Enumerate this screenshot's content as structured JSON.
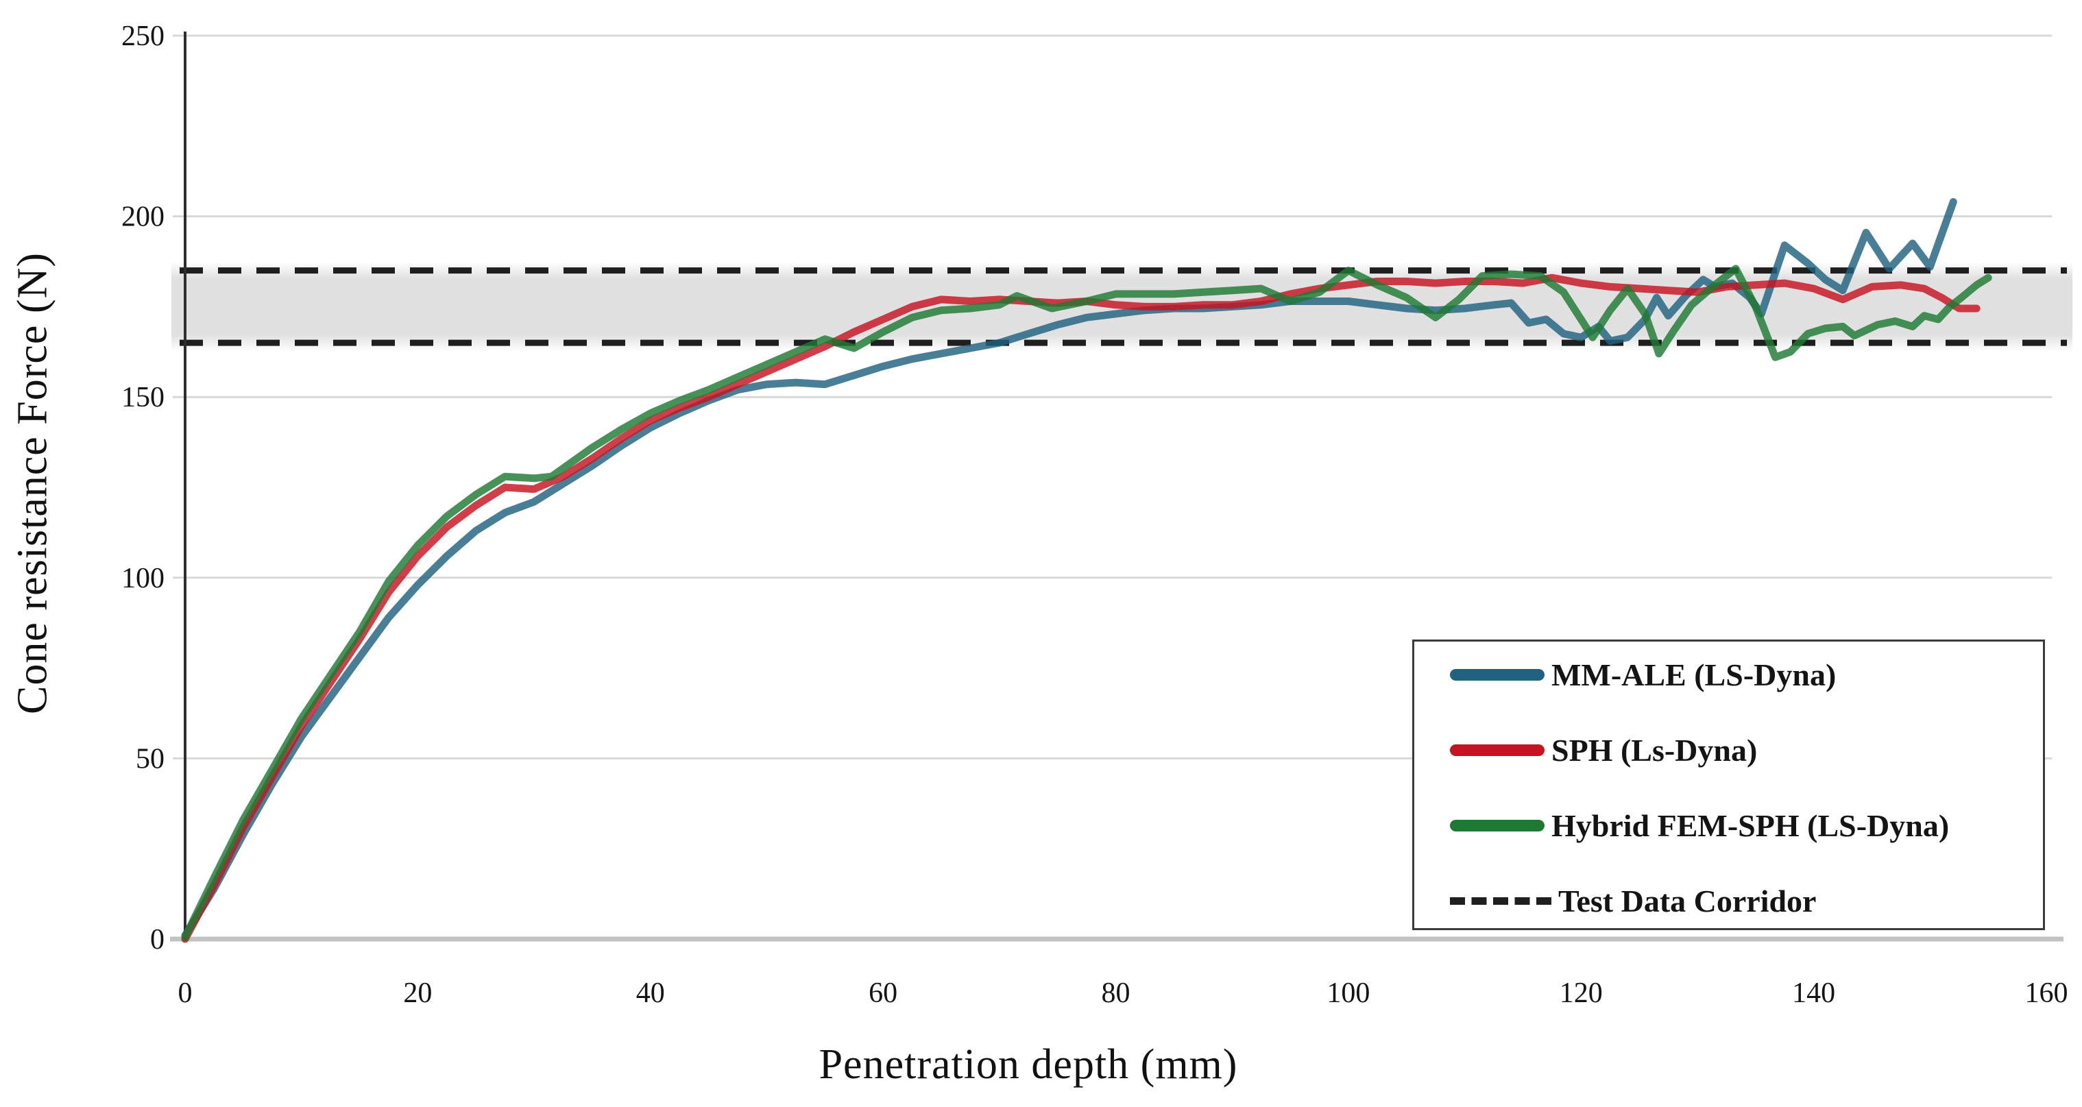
{
  "figure": {
    "type": "line-chart-figure",
    "background": "#ffffff"
  },
  "chart_data": {
    "type": "line",
    "title": "",
    "xlabel": "Penetration depth (mm)",
    "ylabel": "Cone resistance Force (N)",
    "x_axis": {
      "min": 0,
      "max": 160,
      "ticks": [
        0,
        20,
        40,
        60,
        80,
        100,
        120,
        140,
        160
      ]
    },
    "y_axis": {
      "min": 0,
      "max": 250,
      "ticks": [
        0,
        50,
        100,
        150,
        200,
        250
      ]
    },
    "grid": "horizontal-only",
    "corridor": {
      "label": "Test Data Corridor",
      "lower": 165,
      "upper": 185,
      "line_color": "#1f1f1f",
      "band_color": "#d9d9d9"
    },
    "legend_position": "inside-right-bottom",
    "series": [
      {
        "name": "MM-ALE (LS-Dyna)",
        "color": "#20627f",
        "points": [
          [
            0,
            1
          ],
          [
            2.5,
            14
          ],
          [
            5,
            29
          ],
          [
            7.5,
            43
          ],
          [
            10,
            56
          ],
          [
            12.5,
            67
          ],
          [
            15,
            78
          ],
          [
            17.5,
            89
          ],
          [
            20,
            98
          ],
          [
            22.5,
            106
          ],
          [
            25,
            113
          ],
          [
            27.5,
            118
          ],
          [
            30,
            121
          ],
          [
            32.5,
            126
          ],
          [
            35,
            131
          ],
          [
            37.5,
            136.5
          ],
          [
            40,
            141.5
          ],
          [
            42.5,
            145.5
          ],
          [
            45,
            149
          ],
          [
            47.5,
            152
          ],
          [
            50,
            153.5
          ],
          [
            52.5,
            154
          ],
          [
            55,
            153.5
          ],
          [
            57.5,
            156
          ],
          [
            60,
            158.5
          ],
          [
            62.5,
            160.5
          ],
          [
            65,
            162
          ],
          [
            67.5,
            163.5
          ],
          [
            70,
            165
          ],
          [
            72.5,
            167.5
          ],
          [
            75,
            170
          ],
          [
            77.5,
            172
          ],
          [
            80,
            173
          ],
          [
            82.5,
            174
          ],
          [
            85,
            174.5
          ],
          [
            87.5,
            174.5
          ],
          [
            90,
            175
          ],
          [
            92.5,
            175.5
          ],
          [
            95,
            176.5
          ],
          [
            97.5,
            176.5
          ],
          [
            100,
            176.5
          ],
          [
            102.5,
            175.5
          ],
          [
            105,
            174.5
          ],
          [
            107.5,
            174
          ],
          [
            110,
            174.5
          ],
          [
            112.5,
            175.5
          ],
          [
            114,
            176
          ],
          [
            115.5,
            170.5
          ],
          [
            117,
            171.5
          ],
          [
            118.5,
            167.5
          ],
          [
            120,
            166.5
          ],
          [
            121.5,
            169.5
          ],
          [
            122.5,
            165.5
          ],
          [
            124,
            166.5
          ],
          [
            125.5,
            171.5
          ],
          [
            126.5,
            177.5
          ],
          [
            127.5,
            172.5
          ],
          [
            129,
            178
          ],
          [
            130.5,
            182.5
          ],
          [
            131.5,
            180.5
          ],
          [
            133,
            181.5
          ],
          [
            134.5,
            177.5
          ],
          [
            135.5,
            173
          ],
          [
            137.5,
            192
          ],
          [
            139.5,
            187
          ],
          [
            141,
            182.5
          ],
          [
            142.5,
            179.5
          ],
          [
            144.5,
            195.5
          ],
          [
            146.5,
            185.5
          ],
          [
            148.5,
            192.5
          ],
          [
            150,
            186
          ],
          [
            152,
            204
          ]
        ]
      },
      {
        "name": "SPH (Ls-Dyna)",
        "color": "#c61322",
        "points": [
          [
            0,
            0
          ],
          [
            2.5,
            15
          ],
          [
            5,
            31
          ],
          [
            7.5,
            45
          ],
          [
            10,
            59
          ],
          [
            12.5,
            71
          ],
          [
            15,
            83
          ],
          [
            17.5,
            96
          ],
          [
            20,
            106
          ],
          [
            22.5,
            114
          ],
          [
            25,
            120
          ],
          [
            27.5,
            125
          ],
          [
            30,
            124.5
          ],
          [
            32.5,
            128
          ],
          [
            35,
            133
          ],
          [
            37.5,
            138.5
          ],
          [
            40,
            143.5
          ],
          [
            42.5,
            147
          ],
          [
            45,
            150
          ],
          [
            47.5,
            153.5
          ],
          [
            50,
            157
          ],
          [
            52.5,
            160.5
          ],
          [
            55,
            164
          ],
          [
            57.5,
            168
          ],
          [
            60,
            171.5
          ],
          [
            62.5,
            175
          ],
          [
            65,
            177
          ],
          [
            67.5,
            176.5
          ],
          [
            70,
            177
          ],
          [
            72.5,
            176.5
          ],
          [
            75,
            176
          ],
          [
            77.5,
            176.5
          ],
          [
            80,
            175.5
          ],
          [
            82.5,
            175
          ],
          [
            85,
            175
          ],
          [
            87.5,
            175.5
          ],
          [
            90,
            175.5
          ],
          [
            92.5,
            176.5
          ],
          [
            95,
            178.5
          ],
          [
            97.5,
            180
          ],
          [
            100,
            181
          ],
          [
            102.5,
            182
          ],
          [
            105,
            182
          ],
          [
            107.5,
            181.5
          ],
          [
            110,
            182
          ],
          [
            112.5,
            182
          ],
          [
            115,
            181.5
          ],
          [
            117.5,
            183
          ],
          [
            120,
            181.5
          ],
          [
            122.5,
            180.5
          ],
          [
            125,
            180
          ],
          [
            127.5,
            179.5
          ],
          [
            130,
            179
          ],
          [
            132.5,
            180.5
          ],
          [
            135,
            181
          ],
          [
            137.5,
            181.5
          ],
          [
            140,
            180
          ],
          [
            142.5,
            177
          ],
          [
            145,
            180.5
          ],
          [
            147.5,
            181
          ],
          [
            149.5,
            180
          ],
          [
            151,
            177.5
          ],
          [
            152.5,
            174.5
          ],
          [
            154,
            174.5
          ]
        ]
      },
      {
        "name": "Hybrid FEM-SPH (LS-Dyna)",
        "color": "#1e7a33",
        "points": [
          [
            0,
            0.5
          ],
          [
            2.5,
            17
          ],
          [
            5,
            33
          ],
          [
            7.5,
            47
          ],
          [
            10,
            61
          ],
          [
            12.5,
            73
          ],
          [
            15,
            85
          ],
          [
            17.5,
            99
          ],
          [
            20,
            109
          ],
          [
            22.5,
            117
          ],
          [
            25,
            123
          ],
          [
            27.5,
            128
          ],
          [
            30,
            127.5
          ],
          [
            31.5,
            128
          ],
          [
            35,
            136
          ],
          [
            37.5,
            141
          ],
          [
            40,
            145.5
          ],
          [
            42.5,
            149
          ],
          [
            45,
            152
          ],
          [
            47.5,
            155.5
          ],
          [
            50,
            159
          ],
          [
            52.5,
            162.5
          ],
          [
            55,
            166
          ],
          [
            57.5,
            163.5
          ],
          [
            60,
            168
          ],
          [
            62.5,
            172
          ],
          [
            65,
            174
          ],
          [
            67.5,
            174.5
          ],
          [
            70,
            175.5
          ],
          [
            71.5,
            178
          ],
          [
            74.5,
            174.5
          ],
          [
            77.5,
            176.5
          ],
          [
            80,
            178.5
          ],
          [
            82.5,
            178.5
          ],
          [
            85,
            178.5
          ],
          [
            87.5,
            179
          ],
          [
            90,
            179.5
          ],
          [
            92.5,
            180
          ],
          [
            95,
            176.5
          ],
          [
            97.5,
            179
          ],
          [
            100,
            185
          ],
          [
            102.5,
            181
          ],
          [
            105,
            177.5
          ],
          [
            107.5,
            172
          ],
          [
            109.5,
            177
          ],
          [
            111.5,
            183.5
          ],
          [
            114,
            184
          ],
          [
            116.5,
            183.5
          ],
          [
            118.5,
            179
          ],
          [
            121,
            166.5
          ],
          [
            122.5,
            174
          ],
          [
            124,
            180
          ],
          [
            125.5,
            173
          ],
          [
            126.7,
            162
          ],
          [
            128,
            168.5
          ],
          [
            129.5,
            175.5
          ],
          [
            131.5,
            181
          ],
          [
            133.3,
            185.5
          ],
          [
            135,
            175
          ],
          [
            136.7,
            161
          ],
          [
            138,
            162.5
          ],
          [
            139.5,
            167.5
          ],
          [
            141,
            169
          ],
          [
            142.5,
            169.5
          ],
          [
            143.5,
            167
          ],
          [
            145.5,
            170
          ],
          [
            147,
            171
          ],
          [
            148.5,
            169.5
          ],
          [
            149.5,
            172.5
          ],
          [
            150.7,
            171.5
          ],
          [
            151.7,
            175
          ],
          [
            152.7,
            177.5
          ],
          [
            154,
            181
          ],
          [
            155,
            183
          ]
        ]
      }
    ]
  },
  "legend": {
    "entries": [
      {
        "label": "MM-ALE (LS-Dyna)",
        "swatch": "line",
        "color": "#20627f"
      },
      {
        "label": "SPH (Ls-Dyna)",
        "swatch": "line",
        "color": "#c61322"
      },
      {
        "label": "Hybrid FEM-SPH (LS-Dyna)",
        "swatch": "line",
        "color": "#1e7a33"
      },
      {
        "label": "Test Data Corridor",
        "swatch": "dashed-line",
        "color": "#1f1f1f"
      }
    ]
  },
  "style": {
    "grid_color": "#d8d8d8",
    "baseline_color": "#c2c2c2",
    "y_axis_color": "#2e2e2e",
    "text_color": "#141414",
    "curve_width": 11,
    "curve_opacity": 0.82
  }
}
